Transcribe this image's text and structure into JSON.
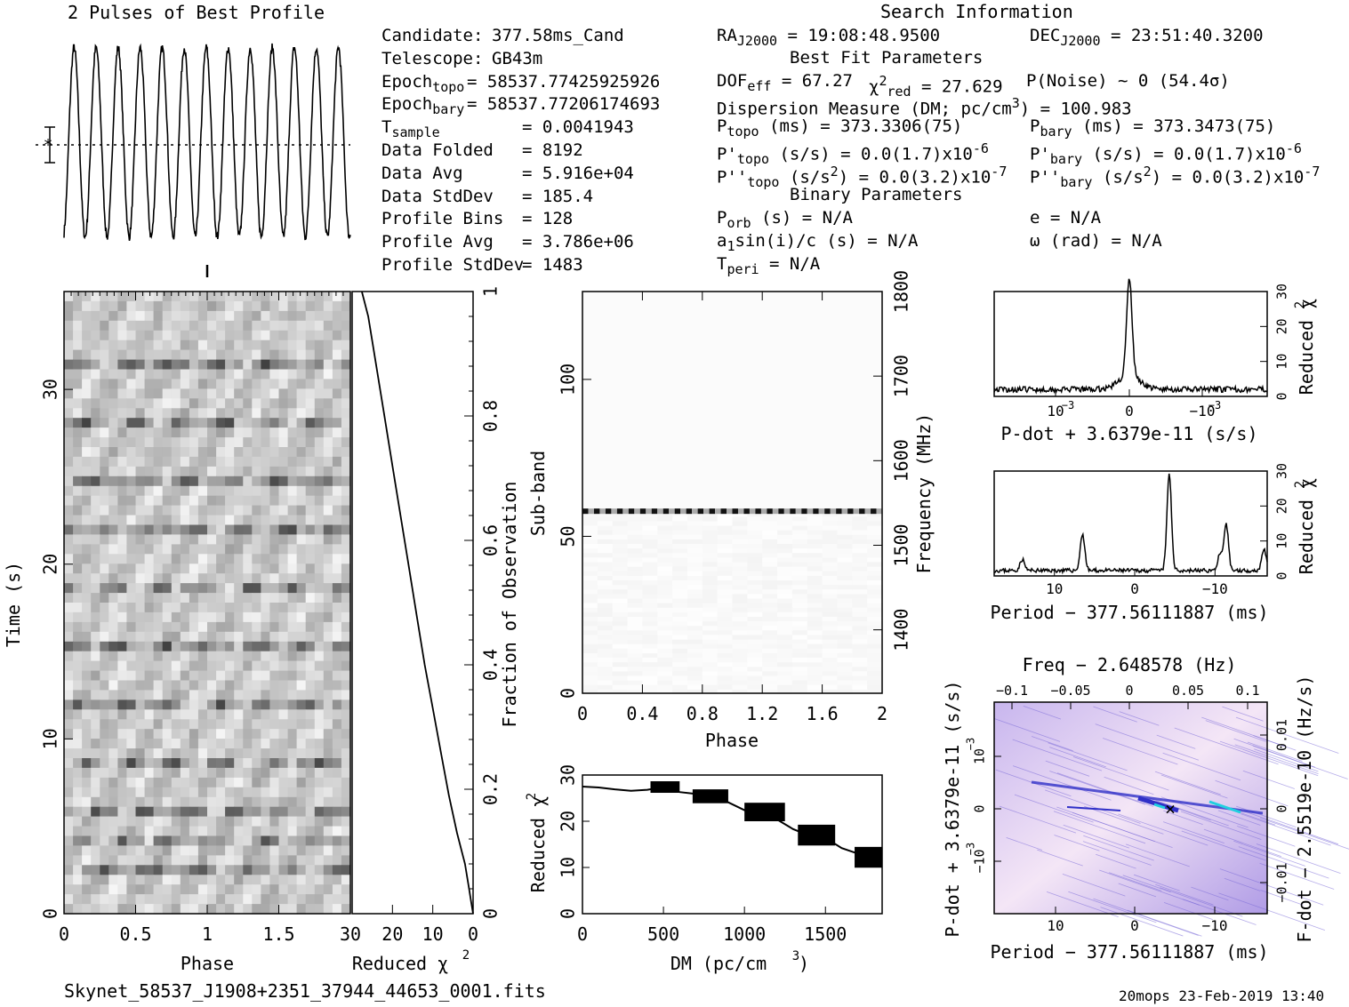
{
  "header": {
    "profile_title": "2 Pulses of Best Profile",
    "search_title": "Search Information",
    "best_fit_title": "Best Fit Parameters",
    "binary_title": "Binary Parameters"
  },
  "info_left": [
    {
      "key": "Candidate:",
      "sub": "",
      "value": "377.58ms_Cand"
    },
    {
      "key": "Telescope:",
      "sub": "",
      "value": "GB43m"
    },
    {
      "key": "Epoch",
      "sub": "topo",
      "value": "= 58537.77425925926"
    },
    {
      "key": "Epoch",
      "sub": "bary",
      "value": "= 58537.77206174693"
    },
    {
      "key": "T",
      "sub": "sample",
      "value": "=   0.0041943"
    },
    {
      "key": "Data Folded",
      "sub": "",
      "value": "=   8192"
    },
    {
      "key": "Data Avg",
      "sub": "",
      "value": "=   5.916e+04"
    },
    {
      "key": "Data StdDev",
      "sub": "",
      "value": "=   185.4"
    },
    {
      "key": "Profile Bins",
      "sub": "",
      "value": "=   128"
    },
    {
      "key": "Profile Avg",
      "sub": "",
      "value": "=   3.786e+06"
    },
    {
      "key": "Profile StdDev",
      "sub": "",
      "value": "=   1483"
    }
  ],
  "info_mid": {
    "ra": "RA",
    "ra_sub": "J2000",
    "ra_val": "= 19:08:48.9500",
    "dec": "DEC",
    "dec_sub": "J2000",
    "dec_val": "= 23:51:40.3200",
    "dof": "DOF",
    "dof_sub": "eff",
    "dof_val": "= 67.27",
    "chi": "χ",
    "chi_sup": "2",
    "chi_sub": "red",
    "chi_val": "= 27.629",
    "pnoise": "P(Noise) ~ 0   (54.4σ)",
    "dm_line": "Dispersion Measure (DM; pc/cm",
    "dm_sup": "3",
    "dm_val": ") = 100.983",
    "ptopo": "P",
    "ptopo_sub": "topo",
    "ptopo_val": "(ms) =  373.3306(75)",
    "pbary": "P",
    "pbary_sub": "bary",
    "pbary_val": "(ms) =  373.3473(75)",
    "pdtopo": "P'",
    "pdtopo_sub": "topo",
    "pdtopo_val": "(s/s) = 0.0(1.7)x10",
    "pdtopo_exp": "-6",
    "pdbary": "P'",
    "pdbary_sub": "bary",
    "pdbary_val": "(s/s) = 0.0(1.7)x10",
    "pdbary_exp": "-6",
    "pddtopo": "P''",
    "pddtopo_sub": "topo",
    "pddtopo_val": "(s/s",
    "pddtopo_sup": "2",
    "pddtopo_val2": ") = 0.0(3.2)x10",
    "pddtopo_exp": "-7",
    "pddbary": "P''",
    "pddbary_sub": "bary",
    "pddbary_val": "(s/s",
    "pddbary_sup": "2",
    "pddbary_val2": ") = 0.0(3.2)x10",
    "pddbary_exp": "-7",
    "porb": "P",
    "porb_sub": "orb",
    "porb_val": "(s) = N/A",
    "ecc": "e = N/A",
    "a1": "a",
    "a1_sub": "1",
    "a1_val": "sin(i)/c (s) = N/A",
    "omega": "ω (rad) = N/A",
    "tperi": "T",
    "tperi_sub": "peri",
    "tperi_val": "= N/A"
  },
  "footer": {
    "filename": "Skynet_58537_J1908+2351_37944_44653_0001.fits",
    "stamp": "20mops 23-Feb-2019 13:40"
  },
  "chart_data": [
    {
      "type": "line",
      "title": "2 Pulses of Best Profile",
      "description_only": false,
      "n_pulses_shown": 13
    },
    {
      "type": "heatmap",
      "xlabel": "Phase",
      "ylabel": "Time (s)",
      "xticks": [
        "0",
        "0.5",
        "1",
        "1.5"
      ],
      "yticks": [
        "0",
        "10",
        "20",
        "30"
      ],
      "xlim": [
        0,
        2
      ],
      "ylim": [
        0,
        35.6
      ],
      "bright_rows_s": [
        2.7,
        4.3,
        6.2,
        8.9,
        12.5,
        15.7,
        19.0,
        22.1,
        25.1,
        28.4,
        31.5
      ]
    },
    {
      "type": "line",
      "xlabel": "Reduced",
      "xlabel_sym": "χ",
      "xlabel_sup": "2",
      "ylabel": "Fraction of Observation",
      "xticks": [
        "30",
        "20",
        "10",
        "0"
      ],
      "yticks": [
        "0",
        "0.2",
        "0.4",
        "0.6",
        "0.8",
        "1"
      ],
      "x": [
        0,
        0.5,
        1,
        2,
        4,
        6,
        8,
        10,
        12,
        14,
        16,
        18,
        20,
        22,
        24,
        26,
        27.6
      ],
      "y": [
        0,
        0.02,
        0.04,
        0.08,
        0.13,
        0.19,
        0.26,
        0.33,
        0.4,
        0.48,
        0.56,
        0.64,
        0.72,
        0.8,
        0.88,
        0.96,
        1.0
      ]
    },
    {
      "type": "heatmap",
      "xlabel": "Phase",
      "ylabel": "Sub-band",
      "y2label": "Frequency (MHz)",
      "xticks": [
        "0",
        "0.4",
        "0.8",
        "1.2",
        "1.6",
        "2"
      ],
      "yticks": [
        "0",
        "50",
        "100"
      ],
      "y2ticks": [
        "1400",
        "1500",
        "1600",
        "1700",
        "1800"
      ],
      "xlim": [
        0,
        2
      ],
      "ylim": [
        0,
        128
      ],
      "y2lim": [
        1325,
        1800
      ],
      "bright_subband": 58
    },
    {
      "type": "line",
      "xlabel": "DM (pc/cm",
      "xlabel_sup": "3",
      "xlabel_end": ")",
      "ylabel": "Reduced",
      "ylabel_sym": "χ",
      "ylabel_sup": "2",
      "xticks": [
        "0",
        "500",
        "1000",
        "1500"
      ],
      "yticks": [
        "0",
        "10",
        "20",
        "30"
      ],
      "xlim": [
        0,
        1850
      ],
      "ylim": [
        0,
        30
      ],
      "x": [
        0,
        100,
        200,
        300,
        400,
        500,
        600,
        700,
        800,
        900,
        1000,
        1100,
        1200,
        1300,
        1400,
        1500,
        1600,
        1700,
        1800,
        1850
      ],
      "y": [
        27.5,
        27.3,
        26.9,
        26.6,
        26.8,
        27.4,
        26.3,
        25.9,
        25.4,
        24.1,
        22.4,
        21.4,
        20.4,
        18.3,
        16.9,
        16.4,
        14.2,
        13.0,
        12.1,
        12.0
      ]
    },
    {
      "type": "line",
      "xlabel": "P-dot + 3.6379e-11 (s/s)",
      "ylabel": "Reduced",
      "ylabel_sym": "χ",
      "ylabel_sup": "2",
      "xticks": [
        "10",
        "0",
        "−10"
      ],
      "xticks_sup": [
        "−3",
        "",
        "−3"
      ],
      "yticks": [
        "0",
        "10",
        "20",
        "30"
      ],
      "ylim": [
        0,
        30
      ],
      "peak_at": 0,
      "peak_value": 27.6,
      "baseline": 1.2
    },
    {
      "type": "line",
      "xlabel": "Period − 377.56111887 (ms)",
      "ylabel": "Reduced",
      "ylabel_sym": "χ",
      "ylabel_sup": "2",
      "xticks": [
        "10",
        "0",
        "−10"
      ],
      "yticks": [
        "0",
        "10",
        "20",
        "30"
      ],
      "xlim": [
        17.5,
        -16.5
      ],
      "ylim": [
        0,
        30
      ],
      "peaks": [
        {
          "x": 14.0,
          "y": 3.2
        },
        {
          "x": 6.5,
          "y": 10.5
        },
        {
          "x": -4.3,
          "y": 27.6
        },
        {
          "x": -11.4,
          "y": 13.0
        },
        {
          "x": -10.6,
          "y": 4.5
        },
        {
          "x": -16.1,
          "y": 6.2
        }
      ],
      "baseline": 1.0
    },
    {
      "type": "heatmap",
      "title": "Freq − 2.648578 (Hz)",
      "xlabel": "Period − 377.56111887 (ms)",
      "ylabel": "P-dot + 3.6379e-11 (s/s)",
      "y2label": "F-dot − 2.5519e-10 (Hz/s)",
      "top_ticks": [
        "−0.1",
        "−0.05",
        "0",
        "0.05",
        "0.1"
      ],
      "bottom_ticks": [
        "10",
        "0",
        "−10"
      ],
      "left_ticks": [
        "10",
        "0",
        "−10"
      ],
      "left_ticks_exp": [
        "−3",
        "",
        "−3"
      ],
      "right_ticks": [
        "0.01",
        "0",
        "−0.01"
      ],
      "best_fit_marker": "×",
      "colors": {
        "background": "#f0dcf4",
        "mid": "#b8a0e8",
        "high": "#3030c8",
        "peak": "#20d0e0"
      }
    }
  ]
}
